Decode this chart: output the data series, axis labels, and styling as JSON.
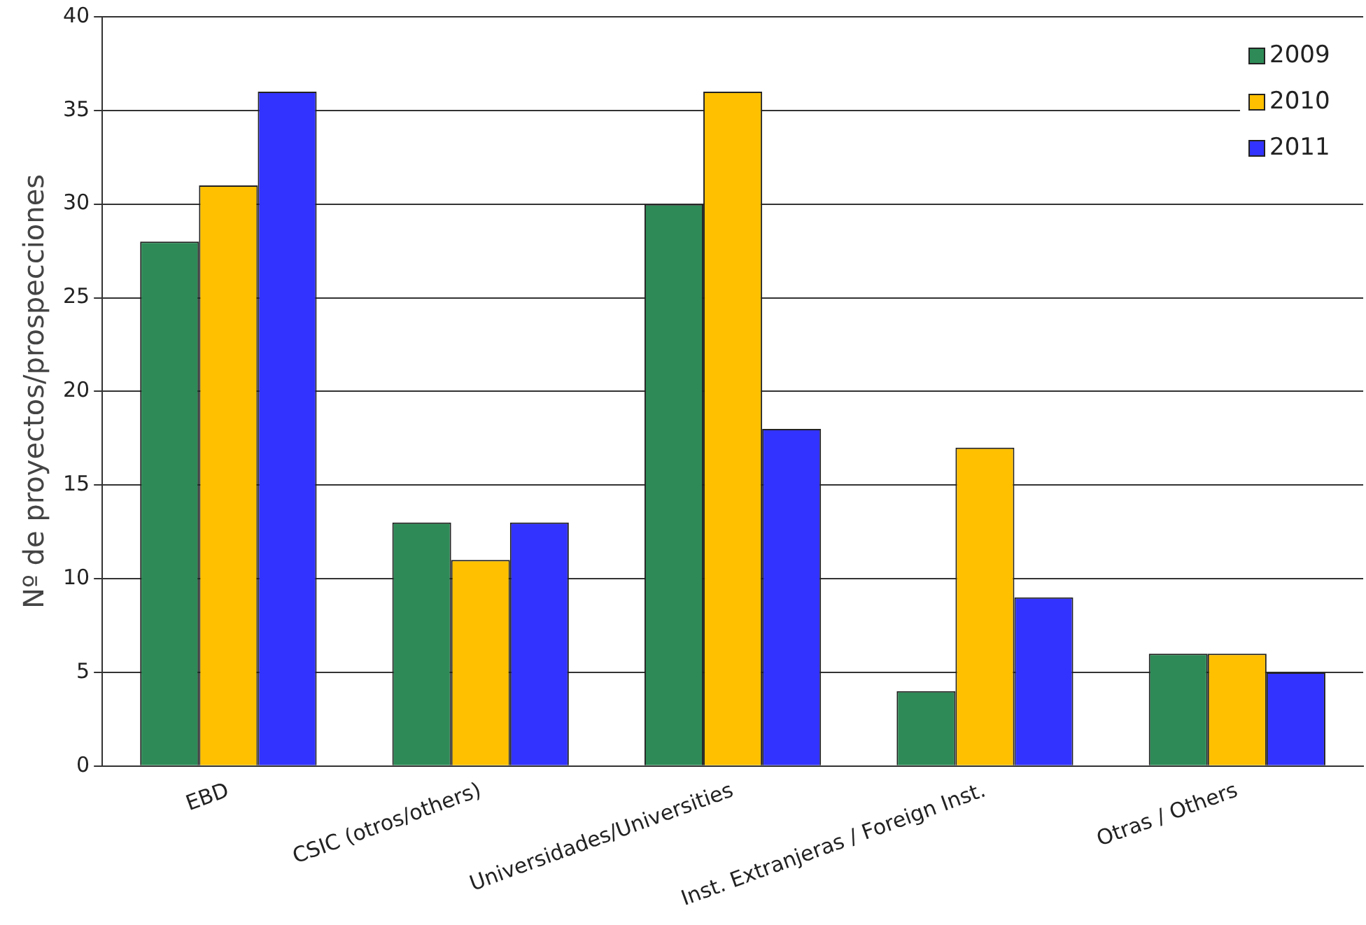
{
  "chart_data": {
    "type": "bar",
    "ylabel": "Nº de proyectos/prospecciones",
    "categories": [
      "EBD",
      "CSIC (otros/others)",
      "Universidades/Universities",
      "Inst. Extranjeras / Foreign Inst.",
      "Otras / Others"
    ],
    "series": [
      {
        "name": "2009",
        "color": "#2e8b57",
        "values": [
          28,
          13,
          30,
          4,
          6
        ]
      },
      {
        "name": "2010",
        "color": "#ffc000",
        "values": [
          31,
          11,
          36,
          17,
          6
        ]
      },
      {
        "name": "2011",
        "color": "#3333ff",
        "values": [
          36,
          13,
          18,
          9,
          5
        ]
      }
    ],
    "ylim": [
      0,
      40
    ],
    "yticks": [
      0,
      5,
      10,
      15,
      20,
      25,
      30,
      35,
      40
    ],
    "grid": "y",
    "legend": "top right"
  }
}
